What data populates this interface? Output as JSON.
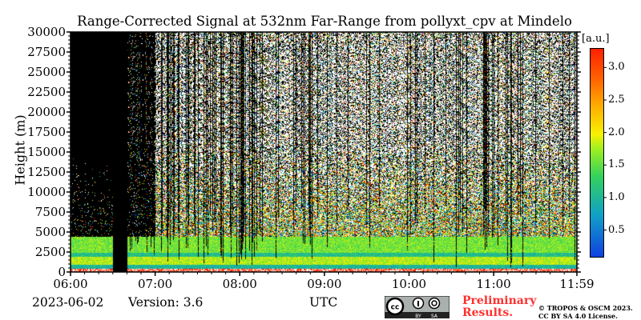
{
  "chart_data": {
    "type": "heatmap",
    "title": "Range-Corrected Signal at 532nm Far-Range from pollyxt_cpv at Mindelo",
    "xlabel": "UTC",
    "ylabel": "Height (m)",
    "x_range": [
      "06:00",
      "11:59"
    ],
    "ylim": [
      0,
      30000
    ],
    "x_ticks": [
      "06:00",
      "07:00",
      "08:00",
      "09:00",
      "10:00",
      "11:00",
      "11:59"
    ],
    "y_ticks": [
      "0",
      "2500",
      "5000",
      "7500",
      "10000",
      "12500",
      "15000",
      "17500",
      "20000",
      "22500",
      "25000",
      "27500",
      "30000"
    ],
    "colorbar": {
      "label": "[a.u.]",
      "range": [
        0.1,
        3.3
      ],
      "ticks": [
        "0.5",
        "1.0",
        "1.5",
        "2.0",
        "2.5",
        "3.0"
      ],
      "colormap": "jet"
    },
    "layers_approx": [
      {
        "height_m": [
          0,
          500
        ],
        "value": 3.3
      },
      {
        "height_m": [
          500,
          1000
        ],
        "value": 1.0
      },
      {
        "height_m": [
          1000,
          2000
        ],
        "value": 1.8
      },
      {
        "height_m": [
          2000,
          2500
        ],
        "value": 1.1
      },
      {
        "height_m": [
          2500,
          4500
        ],
        "value": 1.6
      },
      {
        "height_m": [
          4500,
          30000
        ],
        "value": "noise"
      }
    ],
    "missing_data_approx": [
      {
        "time": [
          "06:00",
          "06:30"
        ],
        "above_m": 5000
      },
      {
        "time": [
          "06:30",
          "06:40"
        ],
        "above_m": 0
      }
    ]
  },
  "footer": {
    "date": "2023-06-02",
    "version": "Version: 3.6",
    "preliminary_line1": "Preliminary",
    "preliminary_line2": "Results.",
    "copyright_line1": "© TROPOS & OSCM 2023.",
    "copyright_line2": "CC BY SA 4.0 License.",
    "cc_logo": "CC BY SA"
  }
}
